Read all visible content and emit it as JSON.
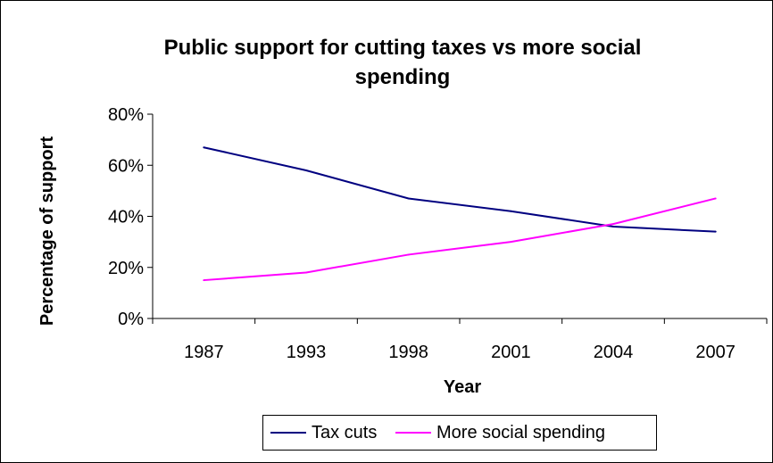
{
  "chart_data": {
    "type": "line",
    "title": "Public support for cutting taxes vs more social spending",
    "xlabel": "Year",
    "ylabel": "Percentage of support",
    "categories": [
      "1987",
      "1993",
      "1998",
      "2001",
      "2004",
      "2007"
    ],
    "y_ticks": [
      "0%",
      "20%",
      "40%",
      "60%",
      "80%"
    ],
    "ylim": [
      0,
      80
    ],
    "y_unit": "%",
    "grid": false,
    "legend_position": "bottom",
    "series": [
      {
        "name": "Tax cuts",
        "color": "#000080",
        "values": [
          67,
          58,
          47,
          42,
          36,
          34
        ]
      },
      {
        "name": "More social spending",
        "color": "#FF00FF",
        "values": [
          15,
          18,
          25,
          30,
          37,
          47
        ]
      }
    ]
  }
}
